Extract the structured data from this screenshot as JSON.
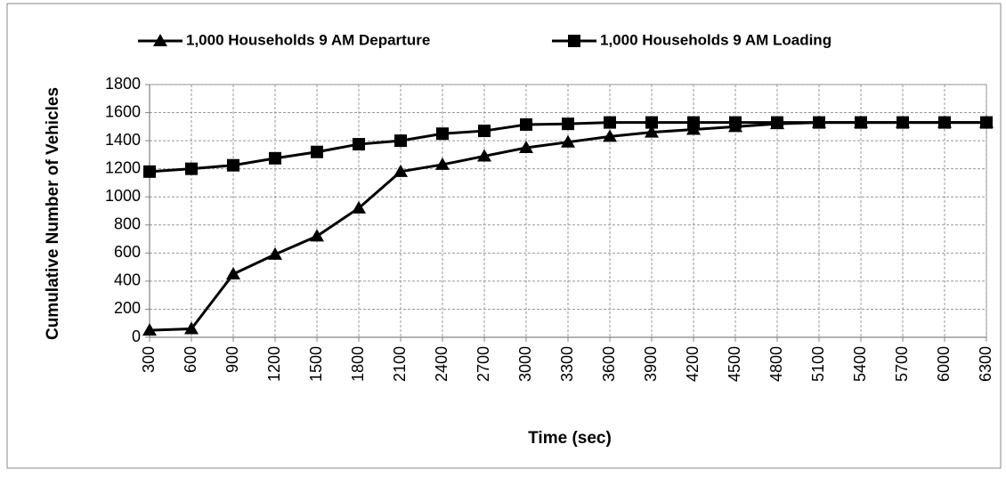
{
  "chart_data": {
    "type": "line",
    "x_label": "Time (sec)",
    "y_label": "Cumulative Number of Vehicles",
    "x": [
      300,
      600,
      900,
      1200,
      1500,
      1800,
      2100,
      2400,
      2700,
      3000,
      3300,
      3600,
      3900,
      4200,
      4500,
      4800,
      5100,
      5400,
      5700,
      6000,
      6300
    ],
    "series": [
      {
        "name": "1,000 Households 9 AM Departure",
        "color": "#000000",
        "marker": "triangle",
        "values": [
          50,
          60,
          450,
          590,
          720,
          920,
          1180,
          1230,
          1290,
          1350,
          1390,
          1430,
          1460,
          1480,
          1500,
          1520,
          1530,
          1530,
          1530,
          1530,
          1530
        ]
      },
      {
        "name": "1,000 Households 9 AM Loading",
        "color": "#000000",
        "marker": "square",
        "values": [
          1180,
          1200,
          1225,
          1275,
          1320,
          1375,
          1400,
          1450,
          1470,
          1515,
          1520,
          1530,
          1530,
          1530,
          1530,
          1530,
          1530,
          1530,
          1530,
          1530,
          1530
        ]
      }
    ],
    "xlim": [
      300,
      6300
    ],
    "xticks": [
      300,
      600,
      900,
      1200,
      1500,
      1800,
      2100,
      2400,
      2700,
      3000,
      3300,
      3600,
      3900,
      4200,
      4500,
      4800,
      5100,
      5400,
      5700,
      6000,
      6300
    ],
    "ylim": [
      0,
      1800
    ],
    "yticks": [
      0,
      200,
      400,
      600,
      800,
      1000,
      1200,
      1400,
      1600,
      1800
    ],
    "grid": true,
    "legend": "top"
  }
}
